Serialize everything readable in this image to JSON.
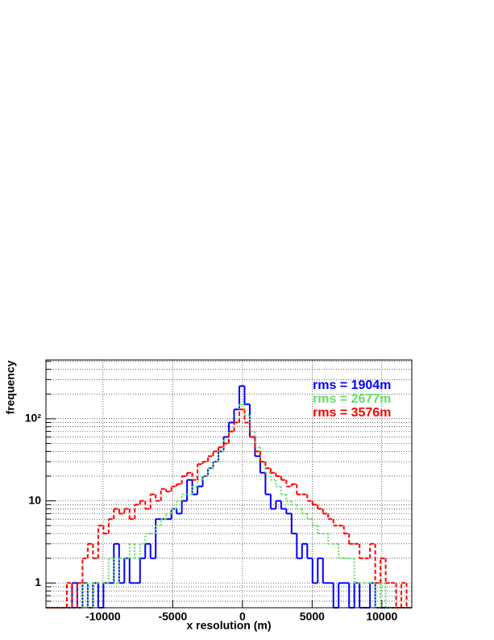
{
  "chart_data": {
    "type": "histogram",
    "xlabel": "x resolution (m)",
    "ylabel": "frequency",
    "bins": [
      -14100,
      -13725,
      -13350,
      -12975,
      -12600,
      -12225,
      -11850,
      -11475,
      -11100,
      -10725,
      -10350,
      -9975,
      -9600,
      -9225,
      -8850,
      -8475,
      -8100,
      -7725,
      -7350,
      -6975,
      -6600,
      -6225,
      -5850,
      -5475,
      -5100,
      -4725,
      -4350,
      -3975,
      -3600,
      -3225,
      -2850,
      -2475,
      -2100,
      -1725,
      -1350,
      -975,
      -600,
      -225,
      150,
      525,
      900,
      1275,
      1650,
      2025,
      2400,
      2775,
      3150,
      3525,
      3900,
      4275,
      4650,
      5025,
      5400,
      5775,
      6150,
      6525,
      6900,
      7275,
      7650,
      8025,
      8400,
      8775,
      9150,
      9525,
      9900,
      10275,
      10650,
      11025,
      11400,
      11775,
      12150
    ],
    "series": [
      {
        "color": "#0000ff",
        "style": "solid",
        "values": [
          0,
          0,
          0,
          0,
          0,
          1,
          0,
          1,
          0,
          1,
          0,
          1,
          1,
          3,
          1,
          2,
          1,
          1,
          2,
          3,
          2,
          6,
          6,
          6,
          8,
          7,
          10,
          18,
          12,
          15,
          20,
          25,
          30,
          40,
          60,
          90,
          130,
          250,
          150,
          60,
          35,
          22,
          12,
          8,
          10,
          8,
          7,
          4,
          2,
          3,
          2,
          1,
          2,
          1,
          1,
          0,
          1,
          1,
          0,
          1,
          0,
          0,
          1,
          0,
          0,
          0,
          0,
          0,
          0,
          0
        ]
      },
      {
        "color": "#66dd66",
        "style": "dotted",
        "values": [
          0,
          0,
          0,
          0,
          0,
          0,
          0,
          1,
          0,
          1,
          1,
          1,
          2,
          1,
          2,
          2,
          3,
          2,
          3,
          4,
          4,
          5,
          6,
          7,
          8,
          10,
          12,
          12,
          15,
          18,
          20,
          25,
          30,
          40,
          55,
          70,
          90,
          150,
          110,
          70,
          45,
          30,
          22,
          18,
          15,
          12,
          10,
          9,
          8,
          7,
          6,
          5,
          4,
          4,
          3,
          3,
          2,
          2,
          2,
          1,
          1,
          1,
          1,
          0,
          1,
          0,
          0,
          0,
          0,
          0
        ]
      },
      {
        "color": "#ff0000",
        "style": "dashed",
        "values": [
          0,
          0,
          0,
          0,
          1,
          0,
          1,
          2,
          3,
          2,
          5,
          4,
          6,
          8,
          7,
          8,
          6,
          9,
          10,
          8,
          12,
          10,
          14,
          13,
          15,
          16,
          20,
          22,
          18,
          28,
          30,
          35,
          40,
          45,
          50,
          70,
          90,
          130,
          90,
          60,
          40,
          30,
          25,
          22,
          20,
          18,
          15,
          16,
          12,
          12,
          10,
          9,
          8,
          7,
          6,
          5,
          5,
          4,
          3,
          3,
          2,
          2,
          3,
          1,
          2,
          1,
          1,
          0,
          1,
          0
        ]
      }
    ],
    "annotations": [
      {
        "text": "rms = 1904m",
        "color": "#0000ff"
      },
      {
        "text": "rms = 2677m",
        "color": "#66dd66"
      },
      {
        "text": "rms = 3576m",
        "color": "#ff0000"
      }
    ],
    "xlim": [
      -14100,
      12150
    ],
    "ylim": [
      0.5,
      520
    ],
    "log_y": true,
    "grid": true,
    "xticks": [
      -10000,
      -5000,
      0,
      5000,
      10000
    ],
    "yticks": [
      1,
      10,
      {
        "value": 100,
        "label": "10²"
      }
    ],
    "yminorticks": [
      0.6,
      0.7,
      0.8,
      0.9,
      2,
      3,
      4,
      5,
      6,
      7,
      8,
      9,
      20,
      30,
      40,
      50,
      60,
      70,
      80,
      90,
      200,
      300,
      400,
      500
    ]
  }
}
